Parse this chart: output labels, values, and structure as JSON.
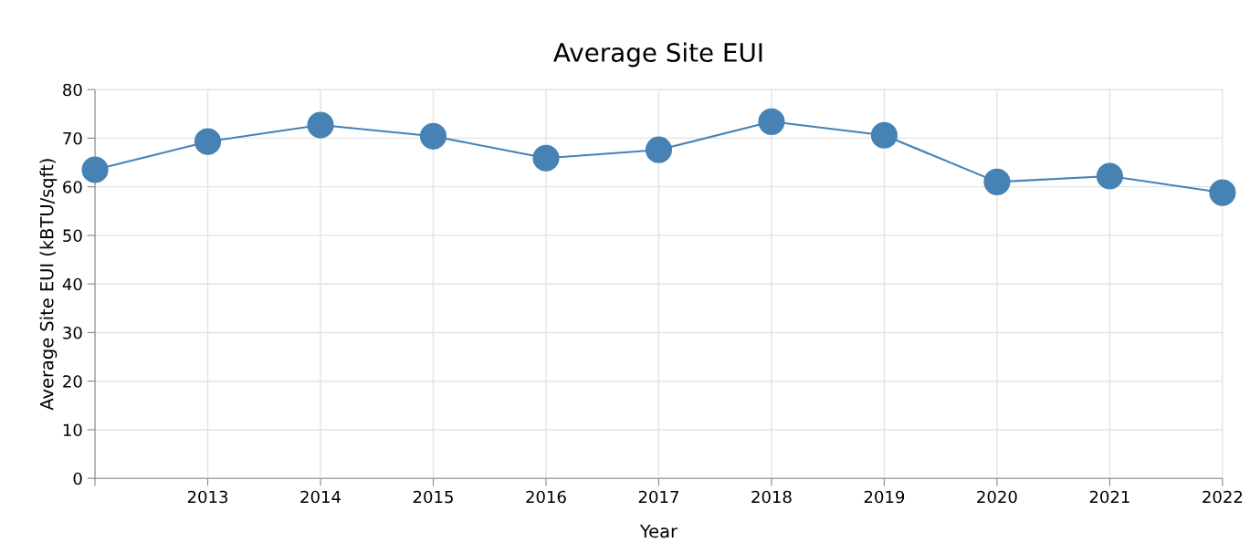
{
  "chart_data": {
    "type": "line",
    "title": "Average Site EUI",
    "xlabel": "Year",
    "ylabel": "Average Site EUI (kBTU/sqft)",
    "x": [
      2012,
      2013,
      2014,
      2015,
      2016,
      2017,
      2018,
      2019,
      2020,
      2021,
      2022
    ],
    "series": [
      {
        "color": "#4682b4",
        "values": [
          63.5,
          69.3,
          72.7,
          70.4,
          65.9,
          67.6,
          73.4,
          70.6,
          61.0,
          62.2,
          58.8
        ]
      }
    ],
    "xlim": [
      2012,
      2022
    ],
    "xticks": [
      {
        "value": 2012,
        "label": null
      },
      2013,
      2014,
      2015,
      2016,
      2017,
      2018,
      2019,
      2020,
      2021,
      2022
    ],
    "ylim": [
      0,
      80
    ],
    "yticks": [
      0,
      10,
      20,
      30,
      40,
      50,
      60,
      70,
      80
    ],
    "grid": true,
    "marker": "circle",
    "line_style": "solid"
  }
}
